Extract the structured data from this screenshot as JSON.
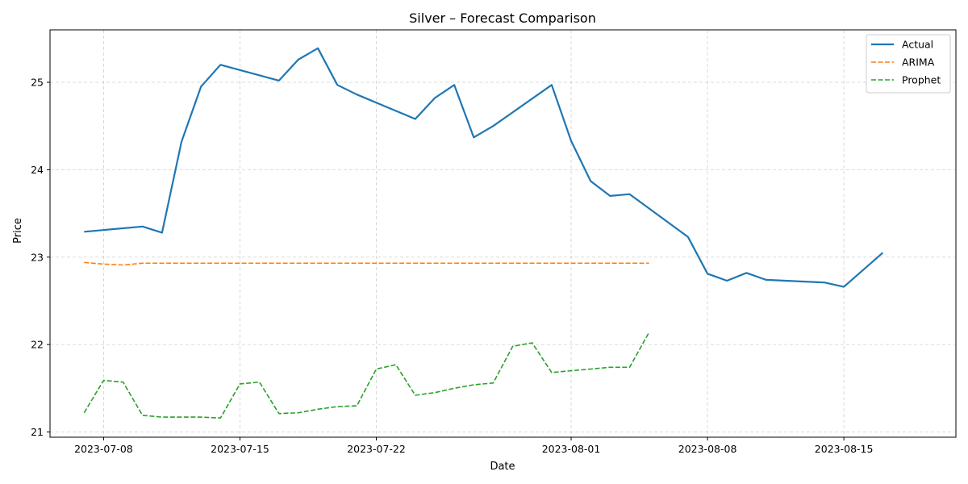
{
  "chart_data": {
    "type": "line",
    "title": "Silver – Forecast Comparison",
    "xlabel": "Date",
    "ylabel": "Price",
    "x_ticks": [
      "2023-07-08",
      "2023-07-15",
      "2023-07-22",
      "2023-08-01",
      "2023-08-08",
      "2023-08-15"
    ],
    "y_ticks": [
      21,
      22,
      23,
      24,
      25
    ],
    "xlim": [
      "2023-07-05T06:00",
      "2023-08-20T18:00"
    ],
    "ylim": [
      20.94,
      25.6
    ],
    "grid": true,
    "legend_position": "top-right",
    "series": [
      {
        "name": "Actual",
        "color": "#1f77b4",
        "style": "solid",
        "points": [
          [
            "2023-07-07",
            23.29
          ],
          [
            "2023-07-10",
            23.35
          ],
          [
            "2023-07-11",
            23.28
          ],
          [
            "2023-07-12",
            24.32
          ],
          [
            "2023-07-13",
            24.95
          ],
          [
            "2023-07-14",
            25.2
          ],
          [
            "2023-07-17",
            25.02
          ],
          [
            "2023-07-18",
            25.26
          ],
          [
            "2023-07-19",
            25.39
          ],
          [
            "2023-07-20",
            24.97
          ],
          [
            "2023-07-21",
            24.86
          ],
          [
            "2023-07-24",
            24.58
          ],
          [
            "2023-07-25",
            24.82
          ],
          [
            "2023-07-26",
            24.97
          ],
          [
            "2023-07-27",
            24.37
          ],
          [
            "2023-07-28",
            24.5
          ],
          [
            "2023-07-31",
            24.97
          ],
          [
            "2023-08-01",
            24.33
          ],
          [
            "2023-08-02",
            23.87
          ],
          [
            "2023-08-03",
            23.7
          ],
          [
            "2023-08-04",
            23.72
          ],
          [
            "2023-08-07",
            23.23
          ],
          [
            "2023-08-08",
            22.81
          ],
          [
            "2023-08-09",
            22.73
          ],
          [
            "2023-08-10",
            22.82
          ],
          [
            "2023-08-11",
            22.74
          ],
          [
            "2023-08-14",
            22.71
          ],
          [
            "2023-08-15",
            22.66
          ],
          [
            "2023-08-17",
            23.05
          ]
        ]
      },
      {
        "name": "ARIMA",
        "color": "#ff7f0e",
        "style": "dashed",
        "points": [
          [
            "2023-07-07",
            22.94
          ],
          [
            "2023-07-08",
            22.92
          ],
          [
            "2023-07-09",
            22.91
          ],
          [
            "2023-07-10",
            22.93
          ],
          [
            "2023-07-11",
            22.93
          ],
          [
            "2023-07-12",
            22.93
          ],
          [
            "2023-07-13",
            22.93
          ],
          [
            "2023-07-14",
            22.93
          ],
          [
            "2023-07-15",
            22.93
          ],
          [
            "2023-07-16",
            22.93
          ],
          [
            "2023-07-17",
            22.93
          ],
          [
            "2023-07-18",
            22.93
          ],
          [
            "2023-07-19",
            22.93
          ],
          [
            "2023-07-20",
            22.93
          ],
          [
            "2023-07-21",
            22.93
          ],
          [
            "2023-07-22",
            22.93
          ],
          [
            "2023-07-23",
            22.93
          ],
          [
            "2023-07-24",
            22.93
          ],
          [
            "2023-07-25",
            22.93
          ],
          [
            "2023-07-26",
            22.93
          ],
          [
            "2023-07-27",
            22.93
          ],
          [
            "2023-07-28",
            22.93
          ],
          [
            "2023-07-29",
            22.93
          ],
          [
            "2023-07-30",
            22.93
          ],
          [
            "2023-07-31",
            22.93
          ],
          [
            "2023-08-01",
            22.93
          ],
          [
            "2023-08-02",
            22.93
          ],
          [
            "2023-08-03",
            22.93
          ],
          [
            "2023-08-04",
            22.93
          ],
          [
            "2023-08-05",
            22.93
          ]
        ]
      },
      {
        "name": "Prophet",
        "color": "#2ca02c",
        "style": "dashed",
        "points": [
          [
            "2023-07-07",
            21.22
          ],
          [
            "2023-07-08",
            21.59
          ],
          [
            "2023-07-09",
            21.57
          ],
          [
            "2023-07-10",
            21.19
          ],
          [
            "2023-07-11",
            21.17
          ],
          [
            "2023-07-12",
            21.17
          ],
          [
            "2023-07-13",
            21.17
          ],
          [
            "2023-07-14",
            21.16
          ],
          [
            "2023-07-15",
            21.55
          ],
          [
            "2023-07-16",
            21.57
          ],
          [
            "2023-07-17",
            21.21
          ],
          [
            "2023-07-18",
            21.22
          ],
          [
            "2023-07-19",
            21.26
          ],
          [
            "2023-07-20",
            21.29
          ],
          [
            "2023-07-21",
            21.3
          ],
          [
            "2023-07-22",
            21.72
          ],
          [
            "2023-07-23",
            21.77
          ],
          [
            "2023-07-24",
            21.42
          ],
          [
            "2023-07-25",
            21.45
          ],
          [
            "2023-07-26",
            21.5
          ],
          [
            "2023-07-27",
            21.54
          ],
          [
            "2023-07-28",
            21.56
          ],
          [
            "2023-07-29",
            21.98
          ],
          [
            "2023-07-30",
            22.02
          ],
          [
            "2023-07-31",
            21.68
          ],
          [
            "2023-08-01",
            21.7
          ],
          [
            "2023-08-02",
            21.72
          ],
          [
            "2023-08-03",
            21.74
          ],
          [
            "2023-08-04",
            21.74
          ],
          [
            "2023-08-05",
            22.14
          ]
        ]
      }
    ]
  }
}
